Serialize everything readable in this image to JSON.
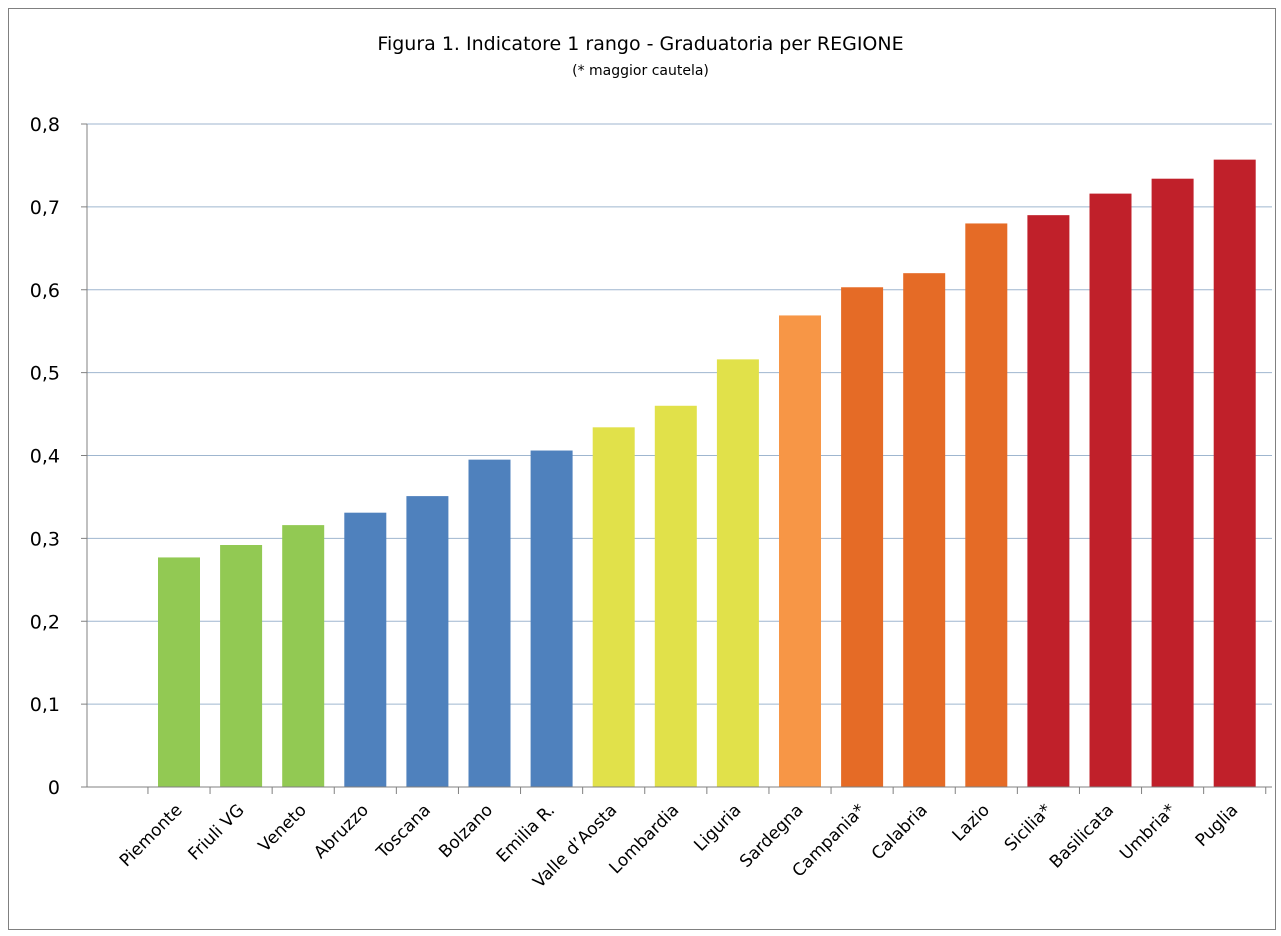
{
  "chart_data": {
    "type": "bar",
    "title": "Figura 1. Indicatore 1 rango - Graduatoria per REGIONE",
    "subtitle": "(* maggior cautela)",
    "categories": [
      "Piemonte",
      "Friuli VG",
      "Veneto",
      "Abruzzo",
      "Toscana",
      "Bolzano",
      "Emilia R.",
      "Valle d’Aosta",
      "Lombardia",
      "Liguria",
      "Sardegna",
      "Campania*",
      "Calabria",
      "Lazio",
      "Sicilia*",
      "Basilicata",
      "Umbria*",
      "Puglia"
    ],
    "values": [
      0.277,
      0.292,
      0.316,
      0.331,
      0.351,
      0.395,
      0.406,
      0.434,
      0.46,
      0.516,
      0.569,
      0.603,
      0.62,
      0.68,
      0.69,
      0.716,
      0.734,
      0.757
    ],
    "bar_colors": [
      "#92c953",
      "#92c953",
      "#92c953",
      "#4f81bd",
      "#4f81bd",
      "#4f81bd",
      "#4f81bd",
      "#e1e14a",
      "#e1e14a",
      "#e1e14a",
      "#f79646",
      "#e56b26",
      "#e56b26",
      "#e56b26",
      "#c0202a",
      "#c0202a",
      "#c0202a",
      "#c0202a"
    ],
    "ylim": [
      0,
      0.8
    ],
    "yticks": [
      "0",
      "0,1",
      "0,2",
      "0,3",
      "0,4",
      "0,5",
      "0,6",
      "0,7",
      "0,8"
    ],
    "xlabel": "",
    "ylabel": "",
    "grid": true,
    "legend": "none"
  }
}
